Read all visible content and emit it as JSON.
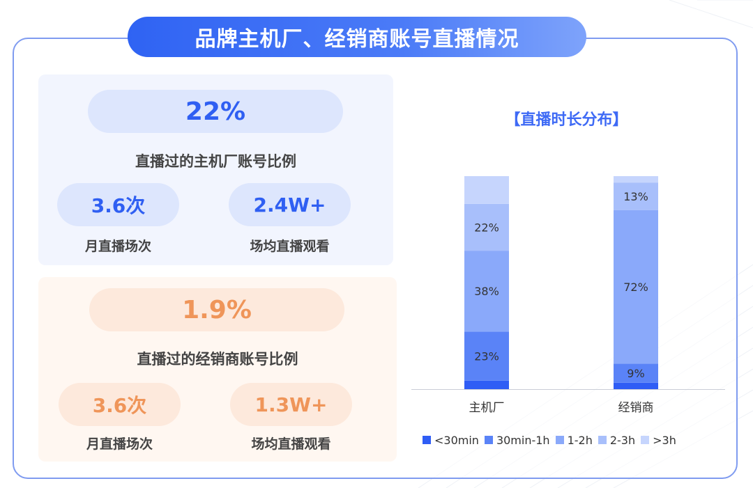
{
  "header": {
    "title": "品牌主机厂、经销商账号直播情况"
  },
  "oem": {
    "ratio": "22%",
    "ratio_label": "直播过的主机厂账号比例",
    "monthly_sessions": "3.6次",
    "monthly_sessions_label": "月直播场次",
    "avg_views": "2.4W+",
    "avg_views_label": "场均直播观看"
  },
  "dealer": {
    "ratio": "1.9%",
    "ratio_label": "直播过的经销商账号比例",
    "monthly_sessions": "3.6次",
    "monthly_sessions_label": "月直播场次",
    "avg_views": "1.3W+",
    "avg_views_label": "场均直播观看"
  },
  "chart_data": {
    "type": "bar",
    "stacked": true,
    "title": "【直播时长分布】",
    "categories": [
      "主机厂",
      "经销商"
    ],
    "ylim": [
      0,
      100
    ],
    "series": [
      {
        "name": "<30min",
        "color": "#2f5df5",
        "values": [
          4,
          3
        ],
        "labels": [
          "",
          ""
        ]
      },
      {
        "name": "30min-1h",
        "color": "#5a83f7",
        "values": [
          23,
          9
        ],
        "labels": [
          "23%",
          "9%"
        ]
      },
      {
        "name": "1-2h",
        "color": "#8aa9fa",
        "values": [
          38,
          72
        ],
        "labels": [
          "38%",
          "72%"
        ]
      },
      {
        "name": "2-3h",
        "color": "#a8bffb",
        "values": [
          22,
          13
        ],
        "labels": [
          "22%",
          "13%"
        ]
      },
      {
        "name": ">3h",
        "color": "#c6d5fd",
        "values": [
          13,
          3
        ],
        "labels": [
          "",
          ""
        ]
      }
    ]
  }
}
